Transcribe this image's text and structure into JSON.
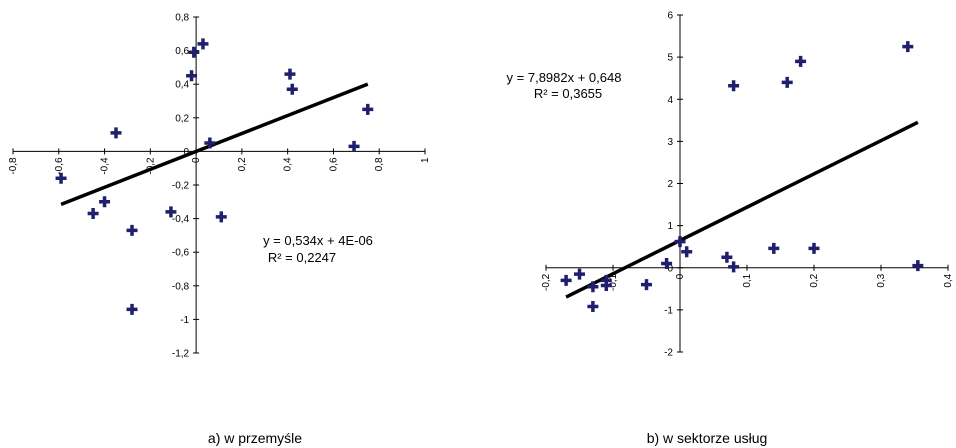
{
  "chart_data": [
    {
      "type": "scatter",
      "caption": "a) w przemyśle",
      "xlim": [
        -0.8,
        1.0
      ],
      "ylim": [
        -1.2,
        0.8
      ],
      "x_ticks": [
        "-0,8",
        "-0,6",
        "-0,4",
        "-0,2",
        "0",
        "0,2",
        "0,4",
        "0,6",
        "0,8",
        "1"
      ],
      "y_ticks": [
        "-1,2",
        "-1",
        "-0,8",
        "-0,6",
        "-0,4",
        "-0,2",
        "0",
        "0,2",
        "0,4",
        "0,6",
        "0,8"
      ],
      "points": [
        {
          "x": -0.59,
          "y": -0.16
        },
        {
          "x": -0.45,
          "y": -0.37
        },
        {
          "x": -0.4,
          "y": -0.3
        },
        {
          "x": -0.35,
          "y": 0.11
        },
        {
          "x": -0.28,
          "y": -0.47
        },
        {
          "x": -0.28,
          "y": -0.94
        },
        {
          "x": -0.11,
          "y": -0.36
        },
        {
          "x": -0.02,
          "y": 0.45
        },
        {
          "x": -0.01,
          "y": 0.59
        },
        {
          "x": 0.03,
          "y": 0.64
        },
        {
          "x": 0.06,
          "y": 0.05
        },
        {
          "x": 0.11,
          "y": -0.39
        },
        {
          "x": 0.41,
          "y": 0.46
        },
        {
          "x": 0.42,
          "y": 0.37
        },
        {
          "x": 0.69,
          "y": 0.03
        },
        {
          "x": 0.75,
          "y": 0.25
        }
      ],
      "trendline": {
        "x_start": -0.59,
        "x_end": 0.75,
        "slope": 0.534,
        "intercept": 4e-06
      },
      "equation": "y = 0,534x + 4E-06",
      "r2": "R² = 0,2247",
      "grid": false
    },
    {
      "type": "scatter",
      "caption": "b) w sektorze usług",
      "xlim": [
        -0.2,
        0.4
      ],
      "ylim": [
        -2,
        6
      ],
      "x_ticks": [
        "-0,2",
        "-0,1",
        "0",
        "0,1",
        "0,2",
        "0,3",
        "0,4"
      ],
      "y_ticks": [
        "-2",
        "-1",
        "0",
        "1",
        "2",
        "3",
        "4",
        "5",
        "6"
      ],
      "points": [
        {
          "x": -0.17,
          "y": -0.3
        },
        {
          "x": -0.15,
          "y": -0.15
        },
        {
          "x": -0.13,
          "y": -0.92
        },
        {
          "x": -0.13,
          "y": -0.45
        },
        {
          "x": -0.11,
          "y": -0.42
        },
        {
          "x": -0.11,
          "y": -0.3
        },
        {
          "x": -0.05,
          "y": -0.4
        },
        {
          "x": -0.02,
          "y": 0.1
        },
        {
          "x": 0.0,
          "y": 0.62
        },
        {
          "x": 0.01,
          "y": 0.38
        },
        {
          "x": 0.07,
          "y": 0.25
        },
        {
          "x": 0.08,
          "y": 0.02
        },
        {
          "x": 0.08,
          "y": 4.32
        },
        {
          "x": 0.14,
          "y": 0.46
        },
        {
          "x": 0.16,
          "y": 4.4
        },
        {
          "x": 0.18,
          "y": 4.9
        },
        {
          "x": 0.2,
          "y": 0.46
        },
        {
          "x": 0.34,
          "y": 5.25
        },
        {
          "x": 0.355,
          "y": 0.05
        }
      ],
      "trendline": {
        "x_start": -0.17,
        "x_end": 0.355,
        "slope": 7.8982,
        "intercept": 0.648
      },
      "equation": "y = 7,8982x + 0,648",
      "r2": "R² = 0,3655",
      "grid": false
    }
  ],
  "colors": {
    "marker": "#1f1f6e",
    "trendline": "#000000",
    "axis": "#000000"
  }
}
